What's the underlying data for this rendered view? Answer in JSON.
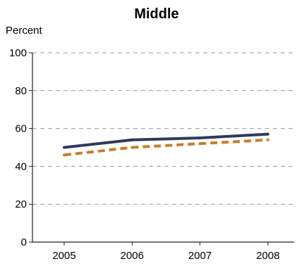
{
  "chart_data": {
    "type": "line",
    "title": "Middle",
    "ylabel": "Percent",
    "xlabel": "",
    "x": [
      "2005",
      "2006",
      "2007",
      "2008"
    ],
    "ylim": [
      0,
      100
    ],
    "yticks": [
      0,
      20,
      40,
      60,
      80,
      100
    ],
    "grid": true,
    "series": [
      {
        "values": [
          50,
          54,
          55,
          57
        ],
        "color": "#2e3a59",
        "style": "solid"
      },
      {
        "values": [
          46,
          50,
          52,
          54
        ],
        "color": "#d07a2a",
        "style": "dashed"
      }
    ]
  }
}
